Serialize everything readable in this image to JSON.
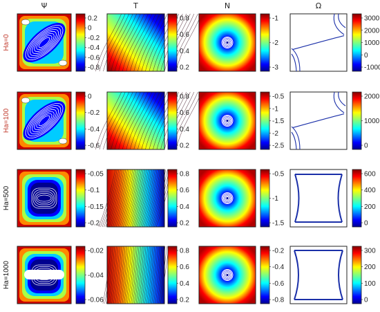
{
  "columns": [
    {
      "title": "Ψ",
      "type": "psi"
    },
    {
      "title": "T",
      "type": "temp"
    },
    {
      "title": "N",
      "type": "n"
    },
    {
      "title": "Ω",
      "type": "omega"
    }
  ],
  "rows": [
    {
      "label": "Ha=0",
      "label_color": "#c0392b",
      "omega_variant": "curved"
    },
    {
      "label": "Ha=100",
      "label_color": "#c0392b",
      "omega_variant": "curved"
    },
    {
      "label": "Ha=500",
      "label_color": "#111111",
      "omega_variant": "boxed"
    },
    {
      "label": "Ha=1000",
      "label_color": "#111111",
      "omega_variant": "boxed"
    }
  ],
  "colorbars": [
    [
      [
        "0.2",
        "0",
        "-0.2",
        "-0.4",
        "-0.6",
        "-0.8"
      ],
      [
        "0.8",
        "0.6",
        "0.4",
        "0.2"
      ],
      [
        "-1",
        "-2",
        "-3"
      ],
      [
        "3000",
        "2000",
        "1000",
        "0",
        "-1000"
      ]
    ],
    [
      [
        "0",
        "-0.2",
        "-0.4",
        "-0.6"
      ],
      [
        "0.8",
        "0.6",
        "0.4",
        "0.2"
      ],
      [
        "-0.5",
        "-1",
        "-1.5",
        "-2",
        "-2.5"
      ],
      [
        "2000",
        "1000",
        "0"
      ]
    ],
    [
      [
        "-0.05",
        "-0.1",
        "-0.15",
        "-0.2"
      ],
      [
        "0.8",
        "0.6",
        "0.4",
        "0.2"
      ],
      [
        "-0.5",
        "-1",
        "-1.5"
      ],
      [
        "600",
        "400",
        "200",
        "0"
      ]
    ],
    [
      [
        "-0.02",
        "-0.04",
        "-0.06"
      ],
      [
        "0.8",
        "0.6",
        "0.4",
        "0.2"
      ],
      [
        "-0.2",
        "-0.4",
        "-0.6",
        "-0.8"
      ],
      [
        "300",
        "200",
        "100",
        "0"
      ]
    ]
  ],
  "colors": {
    "line": "#1a2fa8",
    "frame": "#222222"
  }
}
